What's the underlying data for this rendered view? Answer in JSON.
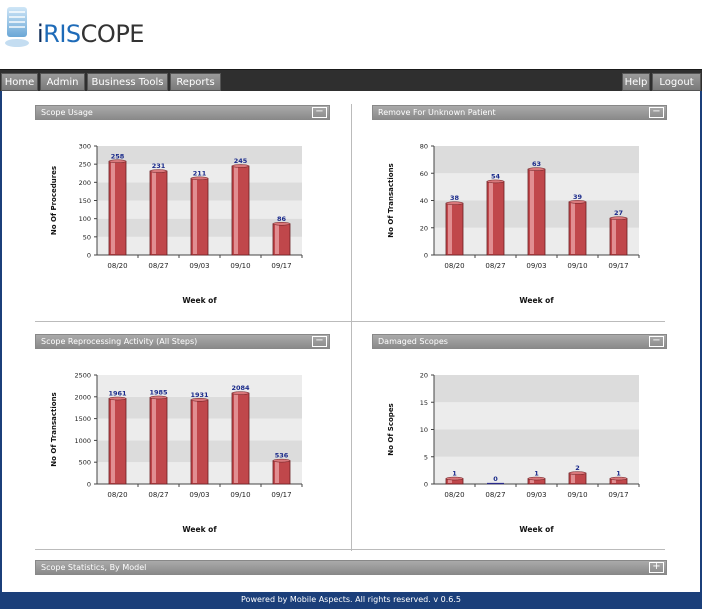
{
  "app": {
    "logo_parts": [
      "i",
      "RIS",
      "COPE"
    ]
  },
  "nav": {
    "left": [
      "Home",
      "Admin",
      "Business Tools",
      "Reports"
    ],
    "right": [
      "Help",
      "Logout"
    ]
  },
  "panels": [
    {
      "title": "Scope Usage",
      "toggle": "−"
    },
    {
      "title": "Remove For Unknown Patient",
      "toggle": "−"
    },
    {
      "title": "Scope Reprocessing Activity (All Steps)",
      "toggle": "−"
    },
    {
      "title": "Damaged Scopes",
      "toggle": "−"
    },
    {
      "title": "Scope Statistics, By Model",
      "toggle": "+"
    }
  ],
  "chart_data": [
    {
      "type": "bar",
      "categories": [
        "08/20",
        "08/27",
        "09/03",
        "09/10",
        "09/17"
      ],
      "values": [
        258,
        231,
        211,
        245,
        86
      ],
      "xlabel": "Week of",
      "ylabel": "No Of Procedures",
      "ylim": [
        0,
        300
      ],
      "yticks": [
        0,
        50,
        100,
        150,
        200,
        250,
        300
      ],
      "bar_color": "#c0474b",
      "label_color": "#1a2a8a"
    },
    {
      "type": "bar",
      "categories": [
        "08/20",
        "08/27",
        "09/03",
        "09/10",
        "09/17"
      ],
      "values": [
        38,
        54,
        63,
        39,
        27
      ],
      "xlabel": "Week of",
      "ylabel": "No Of Transactions",
      "ylim": [
        0,
        80
      ],
      "yticks": [
        0,
        20,
        40,
        60,
        80
      ],
      "bar_color": "#c0474b",
      "label_color": "#1a2a8a"
    },
    {
      "type": "bar",
      "categories": [
        "08/20",
        "08/27",
        "09/03",
        "09/10",
        "09/17"
      ],
      "values": [
        1961,
        1985,
        1931,
        2084,
        536
      ],
      "xlabel": "Week of",
      "ylabel": "No Of Transactions",
      "ylim": [
        0,
        2500
      ],
      "yticks": [
        0,
        500,
        1000,
        1500,
        2000,
        2500
      ],
      "bar_color": "#c0474b",
      "label_color": "#1a2a8a"
    },
    {
      "type": "bar",
      "categories": [
        "08/20",
        "08/27",
        "09/03",
        "09/10",
        "09/17"
      ],
      "values": [
        1,
        0,
        1,
        2,
        1
      ],
      "xlabel": "Week of",
      "ylabel": "No Of Scopes",
      "ylim": [
        0,
        20
      ],
      "yticks": [
        0,
        5,
        10,
        15,
        20
      ],
      "bar_color": "#c0474b",
      "label_color": "#1a2a8a"
    }
  ],
  "footer": {
    "text": "Powered by Mobile Aspects. All rights reserved. v 0.6.5"
  }
}
